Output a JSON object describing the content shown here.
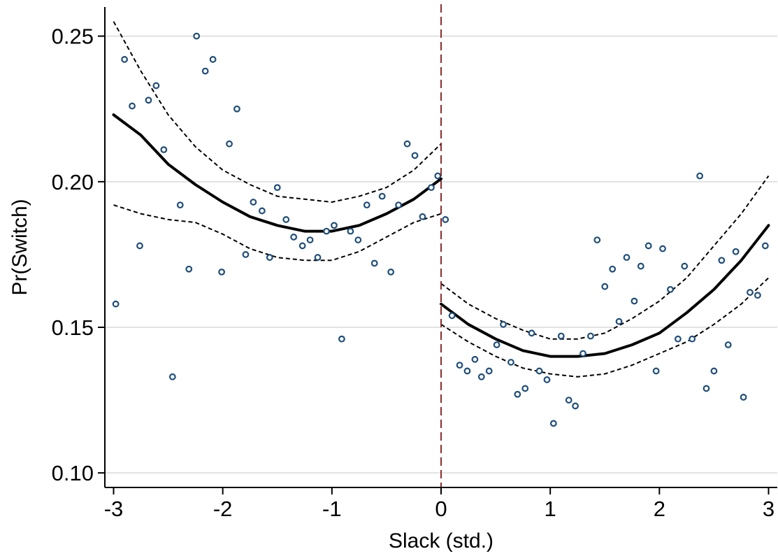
{
  "chart_data": {
    "type": "scatter",
    "xlabel": "Slack (std.)",
    "ylabel": "Pr(Switch)",
    "xlim": [
      -3.08,
      3.08
    ],
    "ylim": [
      0.095,
      0.26
    ],
    "x_ticks": [
      -3,
      -2,
      -1,
      0,
      1,
      2,
      3
    ],
    "x_tick_labels": [
      "-3",
      "-2",
      "-1",
      "0",
      "1",
      "2",
      "3"
    ],
    "y_ticks": [
      0.1,
      0.15,
      0.2,
      0.25
    ],
    "y_tick_labels": [
      "0.10",
      "0.15",
      "0.20",
      "0.25"
    ],
    "grid": "horizontal",
    "cutoff_x": 0,
    "colors": {
      "points": "#1f4e79",
      "fit": "#000000",
      "ci": "#000000",
      "cutoff": "#8b2e2e",
      "grid": "#d9d9d9"
    },
    "points": [
      {
        "x": -2.98,
        "y": 0.158
      },
      {
        "x": -2.9,
        "y": 0.242
      },
      {
        "x": -2.83,
        "y": 0.226
      },
      {
        "x": -2.76,
        "y": 0.178
      },
      {
        "x": -2.68,
        "y": 0.228
      },
      {
        "x": -2.61,
        "y": 0.233
      },
      {
        "x": -2.54,
        "y": 0.211
      },
      {
        "x": -2.46,
        "y": 0.133
      },
      {
        "x": -2.39,
        "y": 0.192
      },
      {
        "x": -2.31,
        "y": 0.17
      },
      {
        "x": -2.24,
        "y": 0.25
      },
      {
        "x": -2.16,
        "y": 0.238
      },
      {
        "x": -2.09,
        "y": 0.242
      },
      {
        "x": -2.01,
        "y": 0.169
      },
      {
        "x": -1.94,
        "y": 0.213
      },
      {
        "x": -1.87,
        "y": 0.225
      },
      {
        "x": -1.79,
        "y": 0.175
      },
      {
        "x": -1.72,
        "y": 0.193
      },
      {
        "x": -1.64,
        "y": 0.19
      },
      {
        "x": -1.57,
        "y": 0.174
      },
      {
        "x": -1.5,
        "y": 0.198
      },
      {
        "x": -1.42,
        "y": 0.187
      },
      {
        "x": -1.35,
        "y": 0.181
      },
      {
        "x": -1.27,
        "y": 0.178
      },
      {
        "x": -1.2,
        "y": 0.18
      },
      {
        "x": -1.13,
        "y": 0.174
      },
      {
        "x": -1.05,
        "y": 0.183
      },
      {
        "x": -0.98,
        "y": 0.185
      },
      {
        "x": -0.91,
        "y": 0.146
      },
      {
        "x": -0.83,
        "y": 0.183
      },
      {
        "x": -0.76,
        "y": 0.18
      },
      {
        "x": -0.68,
        "y": 0.192
      },
      {
        "x": -0.61,
        "y": 0.172
      },
      {
        "x": -0.54,
        "y": 0.195
      },
      {
        "x": -0.46,
        "y": 0.169
      },
      {
        "x": -0.39,
        "y": 0.192
      },
      {
        "x": -0.31,
        "y": 0.213
      },
      {
        "x": -0.24,
        "y": 0.209
      },
      {
        "x": -0.17,
        "y": 0.188
      },
      {
        "x": -0.09,
        "y": 0.198
      },
      {
        "x": -0.03,
        "y": 0.202
      },
      {
        "x": 0.04,
        "y": 0.187
      },
      {
        "x": 0.1,
        "y": 0.154
      },
      {
        "x": 0.17,
        "y": 0.137
      },
      {
        "x": 0.24,
        "y": 0.135
      },
      {
        "x": 0.31,
        "y": 0.139
      },
      {
        "x": 0.37,
        "y": 0.133
      },
      {
        "x": 0.44,
        "y": 0.135
      },
      {
        "x": 0.51,
        "y": 0.144
      },
      {
        "x": 0.57,
        "y": 0.151
      },
      {
        "x": 0.64,
        "y": 0.138
      },
      {
        "x": 0.7,
        "y": 0.127
      },
      {
        "x": 0.77,
        "y": 0.129
      },
      {
        "x": 0.83,
        "y": 0.148
      },
      {
        "x": 0.9,
        "y": 0.135
      },
      {
        "x": 0.97,
        "y": 0.132
      },
      {
        "x": 1.03,
        "y": 0.117
      },
      {
        "x": 1.1,
        "y": 0.147
      },
      {
        "x": 1.17,
        "y": 0.125
      },
      {
        "x": 1.23,
        "y": 0.123
      },
      {
        "x": 1.3,
        "y": 0.141
      },
      {
        "x": 1.37,
        "y": 0.147
      },
      {
        "x": 1.43,
        "y": 0.18
      },
      {
        "x": 1.5,
        "y": 0.164
      },
      {
        "x": 1.57,
        "y": 0.17
      },
      {
        "x": 1.63,
        "y": 0.152
      },
      {
        "x": 1.7,
        "y": 0.174
      },
      {
        "x": 1.77,
        "y": 0.159
      },
      {
        "x": 1.83,
        "y": 0.171
      },
      {
        "x": 1.9,
        "y": 0.178
      },
      {
        "x": 1.97,
        "y": 0.135
      },
      {
        "x": 2.03,
        "y": 0.177
      },
      {
        "x": 2.1,
        "y": 0.163
      },
      {
        "x": 2.17,
        "y": 0.146
      },
      {
        "x": 2.23,
        "y": 0.171
      },
      {
        "x": 2.3,
        "y": 0.146
      },
      {
        "x": 2.37,
        "y": 0.202
      },
      {
        "x": 2.43,
        "y": 0.129
      },
      {
        "x": 2.5,
        "y": 0.135
      },
      {
        "x": 2.57,
        "y": 0.173
      },
      {
        "x": 2.63,
        "y": 0.144
      },
      {
        "x": 2.7,
        "y": 0.176
      },
      {
        "x": 2.77,
        "y": 0.126
      },
      {
        "x": 2.83,
        "y": 0.162
      },
      {
        "x": 2.9,
        "y": 0.161
      },
      {
        "x": 2.97,
        "y": 0.178
      }
    ],
    "fit": {
      "left": {
        "x": [
          -3,
          -2.75,
          -2.5,
          -2.25,
          -2,
          -1.75,
          -1.5,
          -1.25,
          -1,
          -0.75,
          -0.5,
          -0.25,
          0
        ],
        "y": [
          0.223,
          0.216,
          0.206,
          0.199,
          0.193,
          0.188,
          0.185,
          0.183,
          0.183,
          0.185,
          0.189,
          0.194,
          0.201
        ]
      },
      "right": {
        "x": [
          0,
          0.25,
          0.5,
          0.75,
          1,
          1.25,
          1.5,
          1.75,
          2,
          2.25,
          2.5,
          2.75,
          3
        ],
        "y": [
          0.158,
          0.151,
          0.146,
          0.142,
          0.14,
          0.14,
          0.141,
          0.144,
          0.148,
          0.155,
          0.163,
          0.173,
          0.185
        ]
      }
    },
    "ci_upper": {
      "left": {
        "x": [
          -3,
          -2.75,
          -2.5,
          -2.25,
          -2,
          -1.75,
          -1.5,
          -1.25,
          -1,
          -0.75,
          -0.5,
          -0.25,
          0
        ],
        "y": [
          0.255,
          0.238,
          0.223,
          0.212,
          0.204,
          0.199,
          0.195,
          0.194,
          0.193,
          0.195,
          0.198,
          0.204,
          0.213
        ]
      },
      "right": {
        "x": [
          0,
          0.25,
          0.5,
          0.75,
          1,
          1.25,
          1.5,
          1.75,
          2,
          2.25,
          2.5,
          2.75,
          3
        ],
        "y": [
          0.165,
          0.158,
          0.153,
          0.149,
          0.146,
          0.146,
          0.148,
          0.153,
          0.159,
          0.167,
          0.178,
          0.189,
          0.202
        ]
      }
    },
    "ci_lower": {
      "left": {
        "x": [
          -3,
          -2.75,
          -2.5,
          -2.25,
          -2,
          -1.75,
          -1.5,
          -1.25,
          -1,
          -0.75,
          -0.5,
          -0.25,
          0
        ],
        "y": [
          0.192,
          0.189,
          0.187,
          0.186,
          0.182,
          0.177,
          0.174,
          0.173,
          0.173,
          0.176,
          0.181,
          0.186,
          0.189
        ]
      },
      "right": {
        "x": [
          0,
          0.25,
          0.5,
          0.75,
          1,
          1.25,
          1.5,
          1.75,
          2,
          2.25,
          2.5,
          2.75,
          3
        ],
        "y": [
          0.151,
          0.145,
          0.14,
          0.136,
          0.134,
          0.133,
          0.134,
          0.137,
          0.141,
          0.145,
          0.151,
          0.158,
          0.167
        ]
      }
    }
  }
}
